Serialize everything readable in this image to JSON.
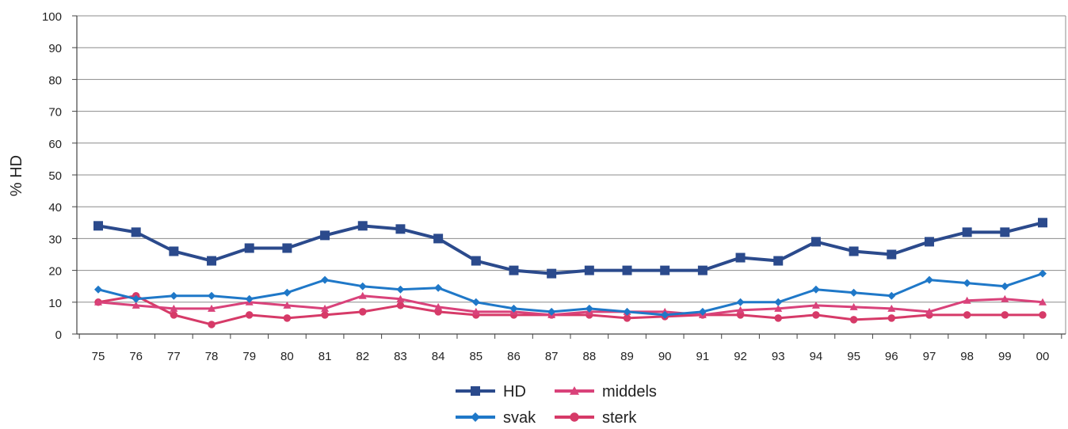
{
  "chart_data": {
    "type": "line",
    "title": "",
    "xlabel": "",
    "ylabel": "% HD",
    "ylim": [
      0,
      100
    ],
    "yticks": [
      0,
      10,
      20,
      30,
      40,
      50,
      60,
      70,
      80,
      90,
      100
    ],
    "grid": true,
    "legend_position": "bottom",
    "categories": [
      "75",
      "76",
      "77",
      "78",
      "79",
      "80",
      "81",
      "82",
      "83",
      "84",
      "85",
      "86",
      "87",
      "88",
      "89",
      "90",
      "91",
      "92",
      "93",
      "94",
      "95",
      "96",
      "97",
      "98",
      "99",
      "00"
    ],
    "series": [
      {
        "name": "HD",
        "color": "#2b4a8c",
        "marker": "square",
        "values": [
          34,
          32,
          26,
          23,
          27,
          27,
          31,
          34,
          33,
          30,
          23,
          20,
          19,
          20,
          20,
          20,
          20,
          24,
          23,
          29,
          26,
          25,
          29,
          32,
          32,
          35
        ]
      },
      {
        "name": "svak",
        "color": "#1f78c8",
        "marker": "diamond",
        "values": [
          14,
          11,
          12,
          12,
          11,
          13,
          17,
          15,
          14,
          14.5,
          10,
          8,
          7,
          8,
          7,
          6,
          7,
          10,
          10,
          14,
          13,
          12,
          17,
          16,
          15,
          19
        ]
      },
      {
        "name": "middels",
        "color": "#d9427a",
        "marker": "triangle",
        "values": [
          10,
          9,
          8,
          8,
          10,
          9,
          8,
          12,
          11,
          8.5,
          7,
          7,
          6,
          7,
          7,
          7,
          6,
          7.5,
          8,
          9,
          8.5,
          8,
          7,
          10.5,
          11,
          10
        ]
      },
      {
        "name": "sterk",
        "color": "#d63a68",
        "marker": "circle",
        "values": [
          10,
          12,
          6,
          3,
          6,
          5,
          6,
          7,
          9,
          7,
          6,
          6,
          6,
          6,
          5,
          5.5,
          6,
          6,
          5,
          6,
          4.5,
          5,
          6,
          6,
          6,
          6
        ]
      }
    ]
  }
}
